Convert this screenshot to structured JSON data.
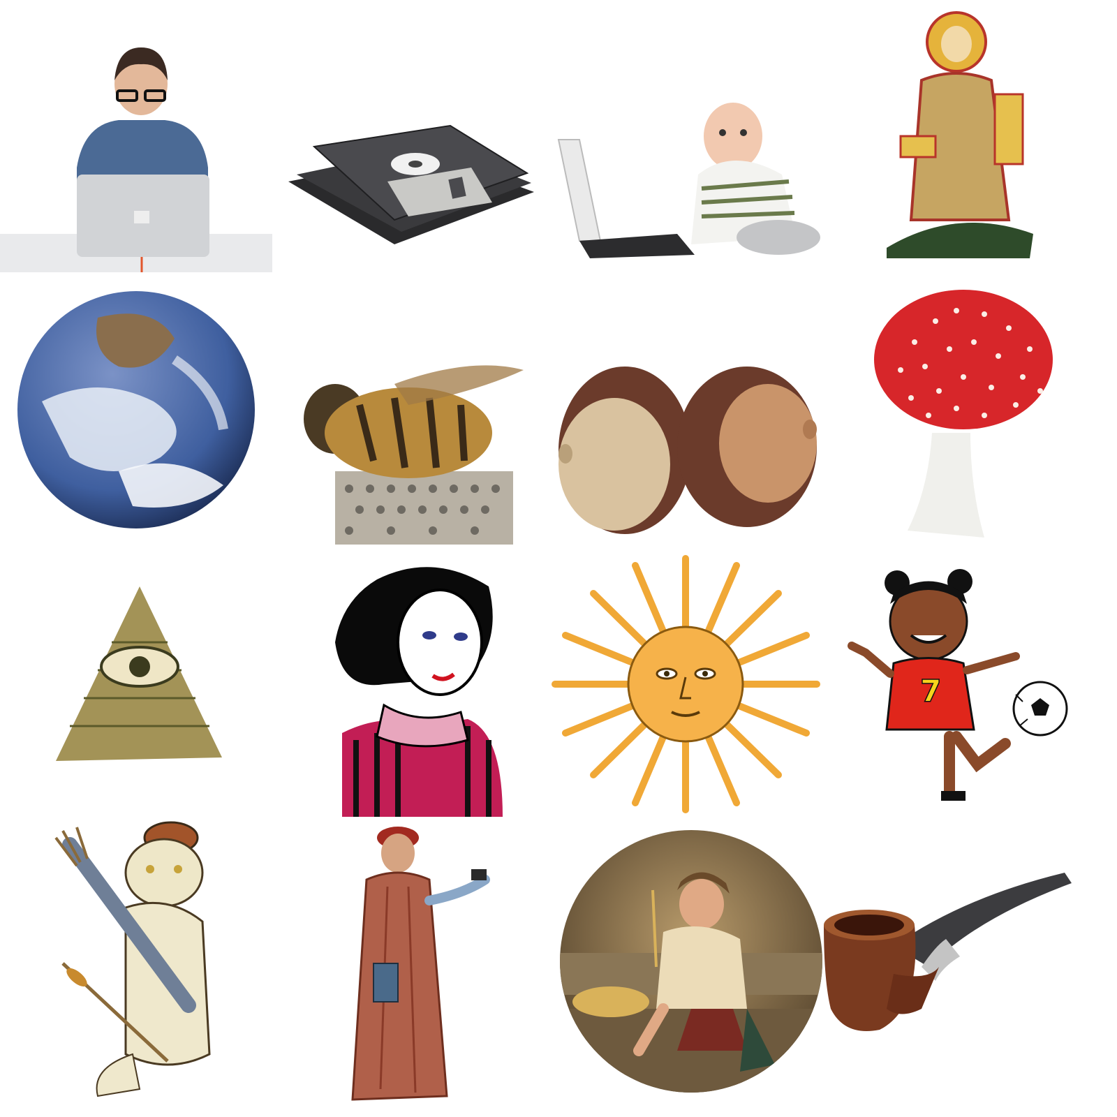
{
  "tiles": [
    {
      "id": "man-with-laptop",
      "icon": "man-with-laptop-icon"
    },
    {
      "id": "floppy-disks",
      "icon": "floppy-disk-icon"
    },
    {
      "id": "baby-with-laptop",
      "icon": "baby-laptop-icon"
    },
    {
      "id": "icon-christ-enthroned",
      "icon": "medieval-figure-icon"
    },
    {
      "id": "earth",
      "icon": "earth-globe-icon"
    },
    {
      "id": "bee-on-thimble",
      "icon": "bee-icon"
    },
    {
      "id": "acorns",
      "icon": "acorn-icon"
    },
    {
      "id": "fly-agaric",
      "icon": "mushroom-icon"
    },
    {
      "id": "eye-pyramid",
      "icon": "eye-of-providence-icon"
    },
    {
      "id": "retro-woman",
      "icon": "retro-woman-icon"
    },
    {
      "id": "sun-of-may",
      "icon": "sun-face-icon"
    },
    {
      "id": "girl-soccer",
      "icon": "girl-soccer-icon"
    },
    {
      "id": "cat-archer",
      "icon": "cat-archer-icon"
    },
    {
      "id": "dante",
      "icon": "dante-figure-icon"
    },
    {
      "id": "boy-eating-pasta",
      "icon": "boy-painting-icon"
    },
    {
      "id": "tobacco-pipe",
      "icon": "pipe-icon"
    }
  ],
  "colors": {
    "earth_ocean": "#3f5f9f",
    "mushroom_red": "#d7262a",
    "sun_gold": "#f6b24a",
    "jersey_red": "#e0261b",
    "pipe_brown": "#7a3a1f"
  },
  "soccer_jersey_number": "7"
}
